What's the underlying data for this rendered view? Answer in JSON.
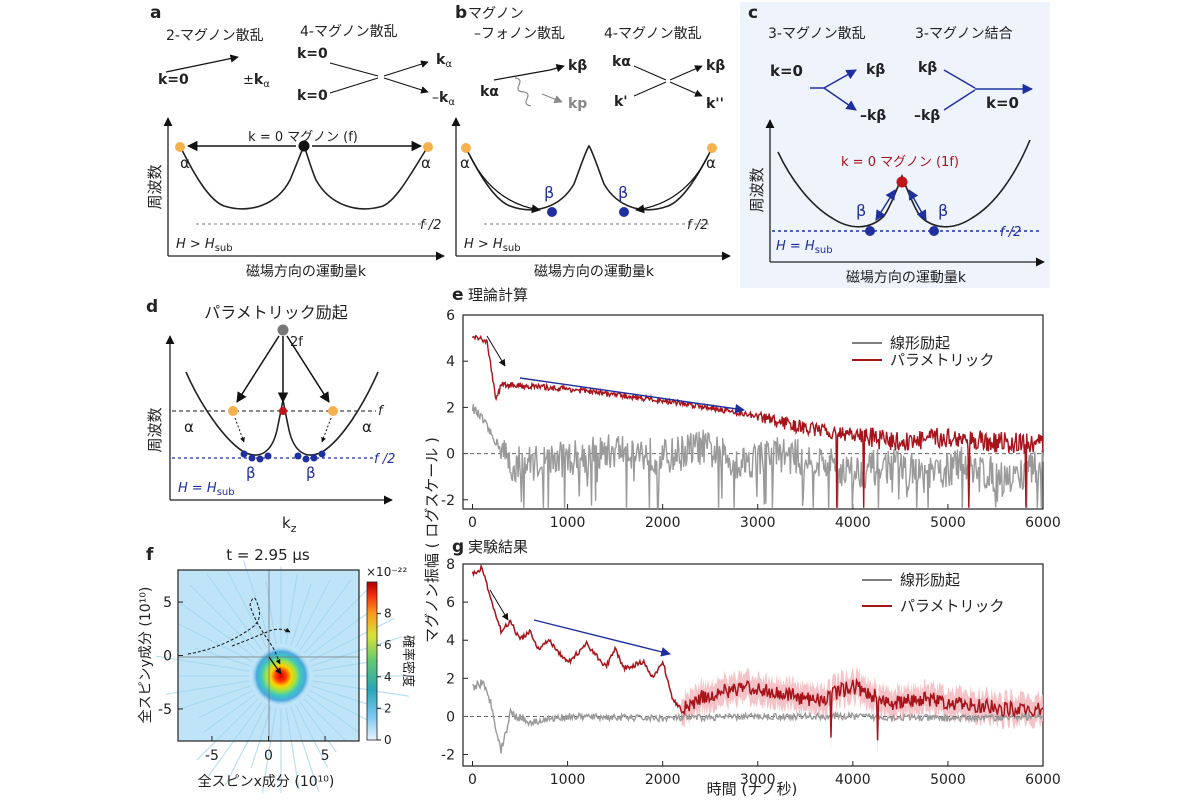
{
  "colors": {
    "accent_blue": "#1f2f9e",
    "accent_red": "#a8141b",
    "accent_orange": "#f5b14d",
    "light_red": "#f3b9bd",
    "gray": "#9a9a9a",
    "panel_c_bg": "#eef3fc",
    "axis": "#222222"
  },
  "panel_a": {
    "label": "a",
    "scat1_title": "2-マグノン散乱",
    "scat2_title": "4-マグノン散乱",
    "k0": "k=0",
    "pm_ka_prefix": "±",
    "k_letter": "k",
    "alpha_sub": "α",
    "minus": "–",
    "center_label": "k = 0 マグノン (f)",
    "alpha": "α",
    "ylabel": "周波数",
    "xlabel": "磁場方向の運動量k",
    "half_f": "f /2",
    "field_cond_h": "H > H",
    "field_sub": "sub"
  },
  "panel_b": {
    "label": "b",
    "title_line1": "マグノン",
    "title_line2": "–フォノン散乱",
    "scat2_title": "4-マグノン散乱",
    "k_alpha": "kα",
    "k_beta": "kβ",
    "k_p": "kp",
    "k_prime": "k'",
    "k_dprime": "k''",
    "alpha": "α",
    "beta": "β",
    "half_f": "f /2",
    "field_cond_h": "H > H",
    "field_sub": "sub",
    "xlabel": "磁場方向の運動量k"
  },
  "panel_c": {
    "label": "c",
    "scat_title": "3-マグノン散乱",
    "comb_title": "3-マグノン結合",
    "k0": "k=0",
    "k_beta": "kβ",
    "minus_k_beta": "–kβ",
    "center_label": "k = 0 マグノン (1f)",
    "beta": "β",
    "ylabel": "周波数",
    "xlabel": "磁場方向の運動量k",
    "half_f": "f /2",
    "field_cond_h": "H = H",
    "field_sub": "sub"
  },
  "panel_d": {
    "label": "d",
    "title": "パラメトリック励起",
    "two_f": "2f",
    "f": "f",
    "half_f": "f /2",
    "alpha": "α",
    "beta": "β",
    "ylabel": "周波数",
    "field_cond_h": "H = H",
    "field_sub": "sub",
    "xlabel": "k",
    "xlabel_sub": "z"
  },
  "panel_e": {
    "label": "e",
    "title": "理論計算",
    "legend_linear": "線形励起",
    "legend_parametric": "パラメトリック",
    "yticks": [
      "6",
      "4",
      "2",
      "0",
      "-2"
    ],
    "xticks": [
      "0",
      "1000",
      "2000",
      "3000",
      "4000",
      "5000",
      "6000"
    ]
  },
  "panel_g": {
    "label": "g",
    "title": "実験結果",
    "legend_linear": "線形励起",
    "legend_parametric": "パラメトリック",
    "yticks": [
      "8",
      "6",
      "4",
      "2",
      "0",
      "-2"
    ],
    "xticks": [
      "0",
      "1000",
      "2000",
      "3000",
      "4000",
      "5000",
      "6000"
    ],
    "xlabel": "時間 (ナノ秒)"
  },
  "shared_ylabel": "マグノン振幅 ( ログスケール )",
  "panel_f": {
    "label": "f",
    "time_label": "t = 2.95 µs",
    "ylabel": "全スピンy成分 (10¹⁰)",
    "xlabel": "全スピンx成分 (10¹⁰)",
    "xticks": [
      "-5",
      "0",
      "5"
    ],
    "yticks": [
      "5",
      "0",
      "-5"
    ],
    "cbar_exp": "×10⁻²²",
    "cbar_ticks": [
      "8",
      "6",
      "4",
      "2",
      "0"
    ],
    "cbar_label": "確率密度"
  },
  "chart_data": [
    {
      "type": "line",
      "panel": "e",
      "title": "理論計算",
      "xlabel": "",
      "ylabel": "マグノン振幅 ( ログスケール )",
      "xlim": [
        -100,
        6000
      ],
      "ylim": [
        -2.4,
        6
      ],
      "series": [
        {
          "name": "線形励起",
          "color": "#9a9a9a",
          "x": [
            0,
            100,
            200,
            300,
            400,
            800,
            1200,
            1600,
            2000,
            2400,
            2800,
            3200,
            3600,
            4000,
            4400,
            4800,
            5200,
            5600,
            6000
          ],
          "y": [
            2.0,
            1.5,
            0.8,
            0.2,
            -0.5,
            -0.3,
            -0.1,
            0.2,
            -0.2,
            0.3,
            -0.4,
            0.0,
            -0.3,
            -0.8,
            -0.5,
            -1.0,
            -0.4,
            -1.2,
            -0.5
          ]
        },
        {
          "name": "パラメトリック",
          "color": "#a8141b",
          "x": [
            0,
            150,
            250,
            300,
            1000,
            2000,
            2500,
            3000,
            3500,
            4000,
            4500,
            5000,
            5500,
            6000
          ],
          "y": [
            5.0,
            4.9,
            2.3,
            3.0,
            2.8,
            2.3,
            2.0,
            1.6,
            1.1,
            0.8,
            0.5,
            0.7,
            0.5,
            0.4
          ]
        }
      ]
    },
    {
      "type": "line",
      "panel": "g",
      "title": "実験結果",
      "xlabel": "時間 (ナノ秒)",
      "ylabel": "マグノン振幅 ( ログスケール )",
      "xlim": [
        -100,
        6000
      ],
      "ylim": [
        -2.6,
        8
      ],
      "series": [
        {
          "name": "線形励起",
          "color": "#9a9a9a",
          "x": [
            0,
            100,
            200,
            300,
            400,
            600,
            1000,
            2000,
            3000,
            4000,
            5000,
            6000
          ],
          "y": [
            1.5,
            1.8,
            0.6,
            -1.8,
            0.2,
            -0.3,
            0.0,
            -0.1,
            0.0,
            0.0,
            -0.1,
            0.0
          ]
        },
        {
          "name": "パラメトリック",
          "color": "#a8141b",
          "x": [
            0,
            100,
            200,
            300,
            400,
            500,
            600,
            700,
            800,
            1000,
            1200,
            1400,
            1500,
            1600,
            1800,
            1900,
            2000,
            2100,
            2200,
            2400,
            2800,
            3200,
            3600,
            4000,
            4400,
            4800,
            5200,
            5600,
            6000
          ],
          "y": [
            7.5,
            7.8,
            6.0,
            4.5,
            5.0,
            4.0,
            4.5,
            3.5,
            4.0,
            2.8,
            3.8,
            2.6,
            3.5,
            2.5,
            2.9,
            2.0,
            2.9,
            1.0,
            0.3,
            1.0,
            1.5,
            1.3,
            0.8,
            1.6,
            0.7,
            0.9,
            0.6,
            0.4,
            0.3
          ]
        }
      ]
    },
    {
      "type": "heatmap",
      "panel": "f",
      "title": "t = 2.95 µs",
      "xlabel": "全スピンx成分 (10¹⁰)",
      "ylabel": "全スピンy成分 (10¹⁰)",
      "xlim": [
        -8,
        8
      ],
      "ylim": [
        -8,
        8
      ],
      "peak_center": [
        1.2,
        -1.9
      ],
      "colorbar_range": [
        0,
        10
      ]
    }
  ]
}
